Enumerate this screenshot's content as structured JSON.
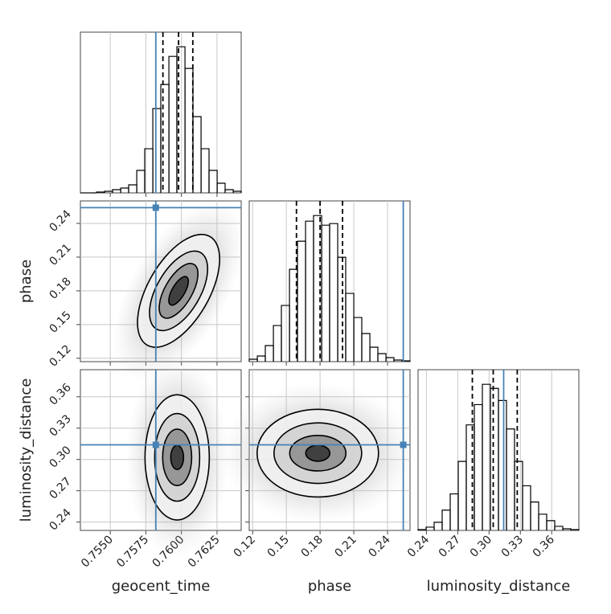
{
  "chart_data": {
    "type": "corner",
    "truth_color": "#4682b4",
    "grid": true,
    "parameters": [
      {
        "name": "geocent_time",
        "lim": [
          0.7529,
          0.7642
        ],
        "ticks": [
          {
            "value": 0.755,
            "label": "0.7550"
          },
          {
            "value": 0.7575,
            "label": "0.7575"
          },
          {
            "value": 0.76,
            "label": "0.7600"
          },
          {
            "value": 0.7625,
            "label": "0.7625"
          }
        ],
        "truth": 0.7582,
        "quantiles": [
          0.7587,
          0.7598,
          0.7608
        ],
        "bins": [
          0.7529,
          0.75347,
          0.75403,
          0.7546,
          0.75516,
          0.75573,
          0.75629,
          0.75686,
          0.75742,
          0.75799,
          0.75855,
          0.75912,
          0.75968,
          0.76025,
          0.76081,
          0.76138,
          0.76194,
          0.76251,
          0.76307,
          0.76364,
          0.7642
        ],
        "counts": [
          0,
          0,
          1,
          2,
          4,
          6,
          10,
          28,
          55,
          105,
          135,
          170,
          182,
          155,
          95,
          55,
          28,
          12,
          4,
          2
        ]
      },
      {
        "name": "phase",
        "lim": [
          0.117,
          0.26
        ],
        "ticks": [
          0.12,
          0.15,
          0.18,
          0.21,
          0.24
        ],
        "truth": 0.254,
        "quantiles": [
          0.159,
          0.18,
          0.2
        ],
        "bins": [
          0.117,
          0.1242,
          0.1313,
          0.1385,
          0.1456,
          0.1528,
          0.1599,
          0.1671,
          0.1742,
          0.1814,
          0.1885,
          0.1957,
          0.2028,
          0.21,
          0.2171,
          0.2243,
          0.2314,
          0.2386,
          0.2457,
          0.2529,
          0.26
        ],
        "counts": [
          3,
          7,
          20,
          45,
          70,
          115,
          150,
          175,
          182,
          170,
          172,
          130,
          85,
          55,
          35,
          18,
          10,
          5,
          2,
          1
        ]
      },
      {
        "name": "luminosity_distance",
        "lim": [
          0.232,
          0.386
        ],
        "ticks": [
          0.24,
          0.27,
          {
            "value": 0.3,
            "label": "0.30"
          },
          0.33,
          0.36
        ],
        "truth": 0.314,
        "quantiles": [
          0.284,
          0.304,
          0.327
        ],
        "bins": [
          0.232,
          0.2397,
          0.2474,
          0.2551,
          0.2628,
          0.2705,
          0.2782,
          0.2859,
          0.2936,
          0.3013,
          0.309,
          0.3167,
          0.3244,
          0.3321,
          0.3398,
          0.3475,
          0.3552,
          0.3629,
          0.3706,
          0.3783,
          0.386
        ],
        "counts": [
          1,
          4,
          10,
          25,
          45,
          85,
          130,
          155,
          180,
          175,
          160,
          125,
          85,
          55,
          35,
          20,
          12,
          5,
          2,
          1
        ]
      }
    ],
    "pairs": [
      {
        "x": 0,
        "y": 1,
        "center": [
          0.7598,
          0.18
        ],
        "tilt": 30,
        "contours": [
          {
            "rx": 0.00045,
            "ry": 0.0143
          },
          {
            "rx": 0.00096,
            "ry": 0.0272
          },
          {
            "rx": 0.00153,
            "ry": 0.0393
          },
          {
            "rx": 0.00215,
            "ry": 0.0558
          }
        ]
      },
      {
        "x": 0,
        "y": 2,
        "center": [
          0.7597,
          0.302
        ],
        "tilt": 0,
        "contours": [
          {
            "rx": 0.00045,
            "ry": 0.0116
          },
          {
            "rx": 0.00102,
            "ry": 0.027
          },
          {
            "rx": 0.00158,
            "ry": 0.042
          },
          {
            "rx": 0.00226,
            "ry": 0.06
          }
        ]
      },
      {
        "x": 1,
        "y": 2,
        "center": [
          0.178,
          0.306
        ],
        "tilt": 0,
        "contours": [
          {
            "rx": 0.0107,
            "ry": 0.0077
          },
          {
            "rx": 0.025,
            "ry": 0.017
          },
          {
            "rx": 0.039,
            "ry": 0.029
          },
          {
            "rx": 0.054,
            "ry": 0.042
          }
        ]
      }
    ]
  }
}
